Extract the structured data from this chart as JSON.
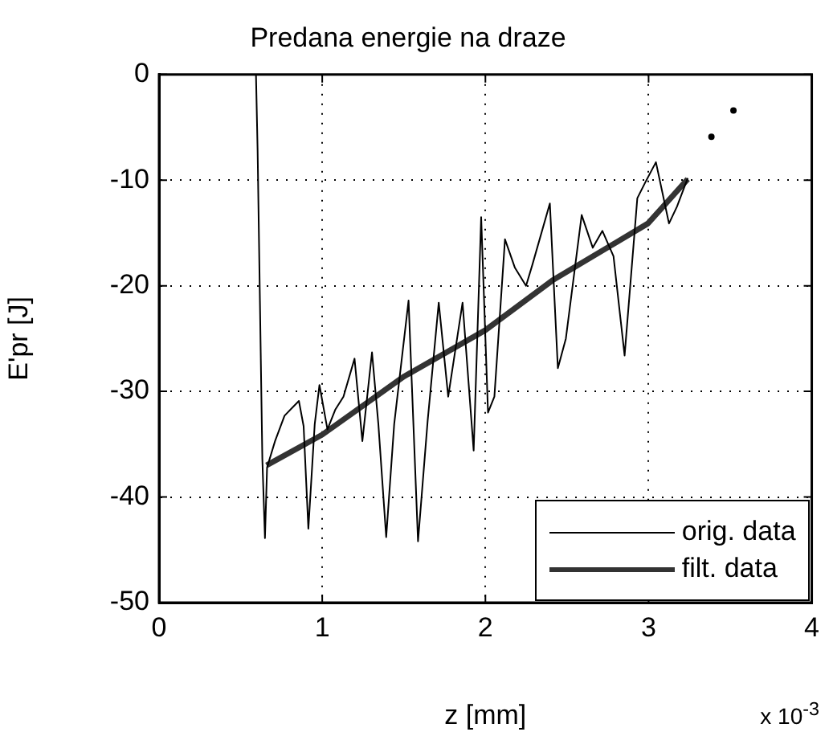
{
  "chart_data": {
    "type": "line",
    "title": "Predana energie na draze",
    "xlabel": "z [mm]",
    "ylabel": "E'pr [J]",
    "annotations": [
      "x 10$^{-3}$"
    ],
    "xlim": [
      0,
      4
    ],
    "xticks": [
      0,
      1,
      2,
      3,
      4
    ],
    "ylim": [
      -50,
      0
    ],
    "yticks": [
      -50,
      -40,
      -30,
      -20,
      -10,
      0
    ],
    "grid": true,
    "legend": "bottom right",
    "line_style": "solid",
    "series": [
      {
        "name": "orig. data",
        "color": "#000000",
        "x": [
          0.594,
          0.604,
          0.633,
          0.649,
          0.662,
          0.711,
          0.769,
          0.857,
          0.886,
          0.915,
          0.954,
          0.983,
          1.032,
          1.081,
          1.13,
          1.198,
          1.246,
          1.305,
          1.344,
          1.392,
          1.441,
          1.529,
          1.587,
          1.646,
          1.714,
          1.772,
          1.86,
          1.928,
          1.974,
          2.016,
          2.055,
          2.12,
          2.181,
          2.249,
          2.288,
          2.395,
          2.444,
          2.493,
          2.59,
          2.658,
          2.717,
          2.785,
          2.853,
          2.931,
          2.98,
          3.045,
          3.125,
          3.174,
          3.24
        ],
        "values": [
          0,
          -7.2,
          -36.4,
          -43.9,
          -37.2,
          -34.7,
          -32.3,
          -30.9,
          -33.3,
          -43,
          -33.1,
          -29.4,
          -33.6,
          -31.7,
          -30.5,
          -26.9,
          -34.7,
          -26.3,
          -33.1,
          -43.8,
          -33.1,
          -21.4,
          -44.2,
          -32.8,
          -21.6,
          -30.5,
          -21.6,
          -35.6,
          -13.5,
          -32,
          -30.5,
          -15.6,
          -18.3,
          -20,
          -18,
          -12.2,
          -27.8,
          -25,
          -13.3,
          -16.4,
          -14.8,
          -17.2,
          -26.6,
          -11.7,
          -10.2,
          -8.3,
          -14.1,
          -12.5,
          -9.8
        ]
      },
      {
        "name": "filt. data",
        "color": "#333333",
        "x": [
          0.659,
          1,
          1.5,
          2,
          2.41,
          2.996,
          3.24
        ],
        "values": [
          -37,
          -34.1,
          -28.6,
          -24.2,
          -19.5,
          -14.1,
          -9.9
        ]
      },
      {
        "type": "scatter",
        "marker": "circle",
        "color": "#000000",
        "x": [
          3.385,
          3.52
        ],
        "values": [
          -5.9,
          -3.4
        ]
      }
    ]
  }
}
